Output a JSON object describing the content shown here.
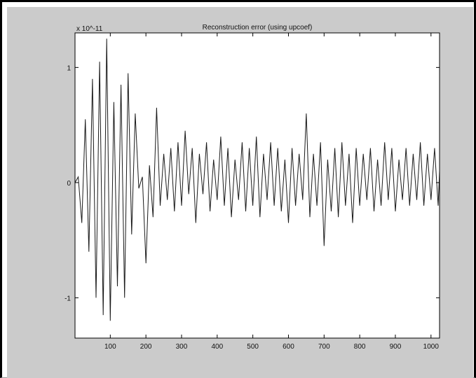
{
  "colors": {
    "figure_bg": "#cbcbcb",
    "axes_bg": "#ffffff",
    "line": "#1a1a1a",
    "frame": "#000000"
  },
  "chart_data": {
    "type": "line",
    "title": "Reconstruction error (using upcoef)",
    "xlabel": "",
    "ylabel": "",
    "y_multiplier": "x 10^-11",
    "xlim": [
      1,
      1024
    ],
    "ylim": [
      -1.35,
      1.3
    ],
    "grid": false,
    "x_ticks": [
      100,
      200,
      300,
      400,
      500,
      600,
      700,
      800,
      900,
      1000
    ],
    "x_tick_labels": [
      "100",
      "200",
      "300",
      "400",
      "500",
      "600",
      "700",
      "800",
      "900",
      "1000"
    ],
    "y_ticks": [
      -1,
      0,
      1
    ],
    "y_tick_labels": [
      "-1",
      "0",
      "1"
    ],
    "series": [
      {
        "values_note_excluded": true,
        "x": [
          1,
          10,
          20,
          30,
          40,
          50,
          60,
          70,
          80,
          90,
          100,
          110,
          120,
          130,
          140,
          150,
          160,
          170,
          180,
          190,
          200,
          210,
          220,
          230,
          240,
          250,
          260,
          270,
          280,
          290,
          300,
          310,
          320,
          330,
          340,
          350,
          360,
          370,
          380,
          390,
          400,
          410,
          420,
          430,
          440,
          450,
          460,
          470,
          480,
          490,
          500,
          510,
          520,
          530,
          540,
          550,
          560,
          570,
          580,
          590,
          600,
          610,
          620,
          630,
          640,
          650,
          660,
          670,
          680,
          690,
          700,
          710,
          720,
          730,
          740,
          750,
          760,
          770,
          780,
          790,
          800,
          810,
          820,
          830,
          840,
          850,
          860,
          870,
          880,
          890,
          900,
          910,
          920,
          930,
          940,
          950,
          960,
          970,
          980,
          990,
          1000,
          1010,
          1020,
          1024
        ],
        "y": [
          0.0,
          0.05,
          -0.35,
          0.55,
          -0.6,
          0.9,
          -1.0,
          1.05,
          -1.15,
          1.25,
          -1.2,
          0.7,
          -0.9,
          0.85,
          -1.0,
          0.95,
          -0.45,
          0.6,
          -0.05,
          0.05,
          -0.7,
          0.15,
          -0.3,
          0.65,
          -0.2,
          0.25,
          -0.15,
          0.3,
          -0.25,
          0.35,
          -0.2,
          0.45,
          -0.1,
          0.3,
          -0.35,
          0.25,
          -0.1,
          0.35,
          -0.25,
          0.2,
          -0.15,
          0.4,
          -0.2,
          0.3,
          -0.3,
          0.2,
          -0.15,
          0.35,
          -0.25,
          0.3,
          -0.2,
          0.4,
          -0.3,
          0.25,
          -0.15,
          0.35,
          -0.2,
          0.3,
          -0.25,
          0.2,
          -0.35,
          0.3,
          -0.2,
          0.25,
          -0.15,
          0.6,
          -0.3,
          0.25,
          -0.2,
          0.35,
          -0.55,
          0.2,
          -0.25,
          0.3,
          -0.3,
          0.35,
          -0.2,
          0.25,
          -0.35,
          0.3,
          -0.2,
          0.25,
          -0.15,
          0.3,
          -0.25,
          0.2,
          -0.2,
          0.35,
          -0.15,
          0.3,
          -0.25,
          0.2,
          -0.15,
          0.3,
          -0.2,
          0.25,
          -0.15,
          0.35,
          -0.2,
          0.25,
          -0.15,
          0.3,
          -0.2,
          0.1
        ]
      }
    ]
  }
}
